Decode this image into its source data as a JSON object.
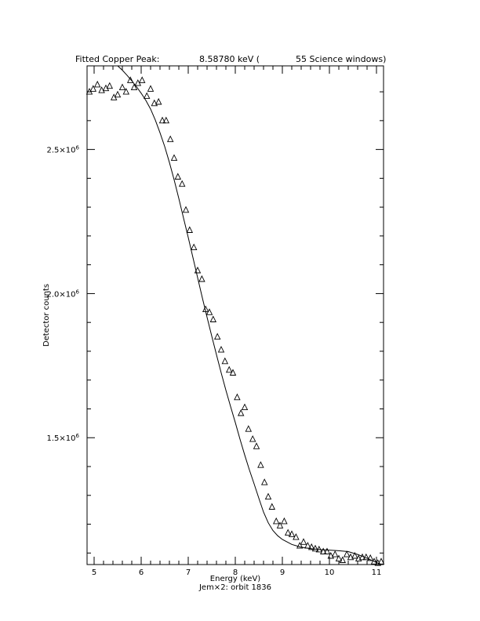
{
  "chart_data": {
    "type": "scatter",
    "title_parts": [
      "Fitted Copper Peak:",
      "8.58780 keV (",
      "55 Science windows)"
    ],
    "xlabel": "Energy (keV)",
    "ylabel": "Detector counts",
    "subtitle": "Jem×2: orbit 1836",
    "xlim": [
      4.85,
      11.15
    ],
    "ylim": [
      1060000,
      2790000
    ],
    "x_ticks": [
      5,
      6,
      7,
      8,
      9,
      10,
      11
    ],
    "x_tick_labels": [
      "5",
      "6",
      "7",
      "8",
      "9",
      "10",
      "11"
    ],
    "y_ticks": [
      1500000,
      2000000,
      2500000
    ],
    "y_tick_labels": [
      {
        "mantissa": "1.5×10",
        "exp": "6"
      },
      {
        "mantissa": "2.0×10",
        "exp": "6"
      },
      {
        "mantissa": "2.5×10",
        "exp": "6"
      }
    ],
    "series": [
      {
        "marker": "triangle",
        "x": [
          4.9,
          4.98,
          5.07,
          5.16,
          5.25,
          5.33,
          5.42,
          5.5,
          5.6,
          5.68,
          5.77,
          5.85,
          5.93,
          6.02,
          6.12,
          6.2,
          6.28,
          6.37,
          6.45,
          6.53,
          6.62,
          6.7,
          6.78,
          6.87,
          6.95,
          7.03,
          7.12,
          7.2,
          7.29,
          7.37,
          7.45,
          7.53,
          7.62,
          7.7,
          7.78,
          7.87,
          7.95,
          8.04,
          8.12,
          8.2,
          8.28,
          8.37,
          8.45,
          8.54,
          8.62,
          8.7,
          8.78,
          8.87,
          8.95,
          9.04,
          9.12,
          9.2,
          9.29,
          9.37,
          9.45,
          9.54,
          9.62,
          9.7,
          9.78,
          9.87,
          9.95,
          10.03,
          10.12,
          10.2,
          10.28,
          10.37,
          10.45,
          10.54,
          10.62,
          10.7,
          10.78,
          10.87,
          10.95,
          11.03,
          11.1
        ],
        "y": [
          2700000,
          2710000,
          2725000,
          2705000,
          2712000,
          2720000,
          2680000,
          2690000,
          2715000,
          2700000,
          2740000,
          2715000,
          2730000,
          2740000,
          2685000,
          2710000,
          2660000,
          2665000,
          2600000,
          2600000,
          2535000,
          2470000,
          2405000,
          2380000,
          2290000,
          2220000,
          2160000,
          2080000,
          2050000,
          1945000,
          1935000,
          1910000,
          1850000,
          1805000,
          1765000,
          1735000,
          1725000,
          1640000,
          1585000,
          1605000,
          1530000,
          1495000,
          1470000,
          1405000,
          1345000,
          1295000,
          1260000,
          1210000,
          1195000,
          1210000,
          1170000,
          1165000,
          1155000,
          1125000,
          1138000,
          1125000,
          1120000,
          1115000,
          1112000,
          1105000,
          1105000,
          1090000,
          1095000,
          1080000,
          1075000,
          1095000,
          1085000,
          1090000,
          1080000,
          1085000,
          1085000,
          1082000,
          1070000,
          1065000,
          1070000
        ]
      },
      {
        "kind": "fit-line",
        "x": [
          5.5,
          5.6,
          5.7,
          5.8,
          5.9,
          6.0,
          6.1,
          6.2,
          6.3,
          6.4,
          6.5,
          6.6,
          6.7,
          6.8,
          6.9,
          7.0,
          7.1,
          7.2,
          7.3,
          7.4,
          7.5,
          7.6,
          7.7,
          7.8,
          7.9,
          8.0,
          8.1,
          8.2,
          8.3,
          8.4,
          8.5,
          8.6,
          8.7,
          8.8,
          8.9,
          9.0,
          9.2,
          9.4,
          9.6,
          9.8,
          10.0,
          10.2,
          10.4,
          10.6,
          10.8,
          11.0,
          11.1
        ],
        "y": [
          2790000,
          2775000,
          2757000,
          2738000,
          2718000,
          2695000,
          2670000,
          2640000,
          2602000,
          2558000,
          2510000,
          2455000,
          2395000,
          2330000,
          2262000,
          2195000,
          2125000,
          2055000,
          1985000,
          1918000,
          1852000,
          1788000,
          1725000,
          1665000,
          1608000,
          1553000,
          1495000,
          1440000,
          1388000,
          1340000,
          1290000,
          1242000,
          1205000,
          1178000,
          1160000,
          1147000,
          1130000,
          1120000,
          1115000,
          1112000,
          1110000,
          1108000,
          1105000,
          1095000,
          1082000,
          1067000,
          1060000
        ]
      }
    ],
    "grid": false
  }
}
